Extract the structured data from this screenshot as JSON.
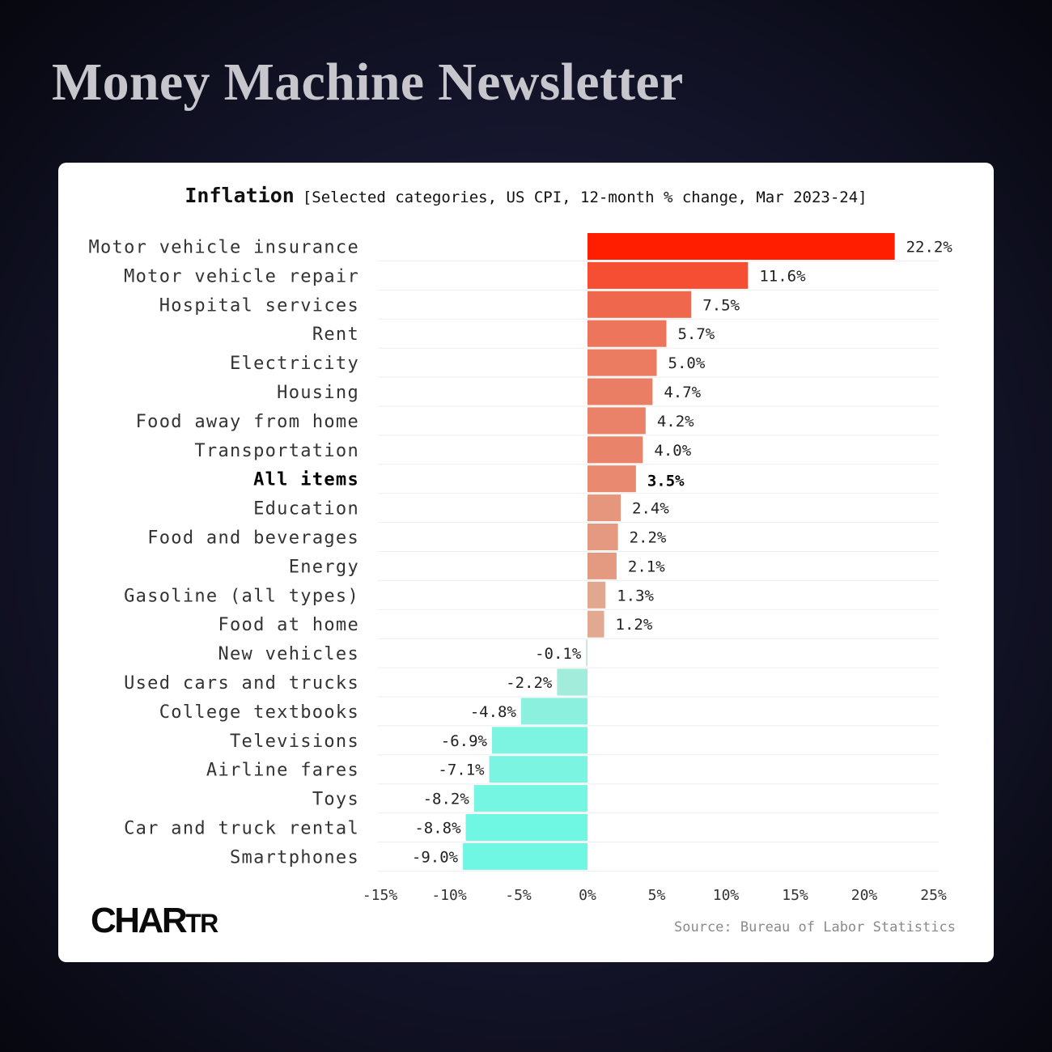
{
  "brand": {
    "title": "Money Machine Newsletter"
  },
  "chart_data": {
    "type": "bar",
    "orientation": "horizontal",
    "title": "Inflation",
    "subtitle": "[Selected categories, US CPI, 12-month % change, Mar 2023-24]",
    "categories": [
      "Motor vehicle insurance",
      "Motor vehicle repair",
      "Hospital services",
      "Rent",
      "Electricity",
      "Housing",
      "Food away from home",
      "Transportation",
      "All items",
      "Education",
      "Food and beverages",
      "Energy",
      "Gasoline (all types)",
      "Food at home",
      "New vehicles",
      "Used cars and trucks",
      "College textbooks",
      "Televisions",
      "Airline fares",
      "Toys",
      "Car and truck rental",
      "Smartphones"
    ],
    "values": [
      22.2,
      11.6,
      7.5,
      5.7,
      5.0,
      4.7,
      4.2,
      4.0,
      3.5,
      2.4,
      2.2,
      2.1,
      1.3,
      1.2,
      -0.1,
      -2.2,
      -4.8,
      -6.9,
      -7.1,
      -8.2,
      -8.8,
      -9.0
    ],
    "value_labels": [
      "22.2%",
      "11.6%",
      "7.5%",
      "5.7%",
      "5.0%",
      "4.7%",
      "4.2%",
      "4.0%",
      "3.5%",
      "2.4%",
      "2.2%",
      "2.1%",
      "1.3%",
      "1.2%",
      "-0.1%",
      "-2.2%",
      "-4.8%",
      "-6.9%",
      "-7.1%",
      "-8.2%",
      "-8.8%",
      "-9.0%"
    ],
    "highlight": "All items",
    "xlim": [
      -15,
      25
    ],
    "xticks": [
      -15,
      -10,
      -5,
      0,
      5,
      10,
      15,
      20,
      25
    ],
    "xtick_labels": [
      "-15%",
      "-10%",
      "-5%",
      "0%",
      "5%",
      "10%",
      "15%",
      "20%",
      "25%"
    ],
    "colors": {
      "positive_strong": "#ff1e00",
      "positive_weak": "#d6dcc6",
      "negative_weak": "#c7e4d2",
      "negative_strong": "#6ff7e4",
      "gridline": "#eeeeee"
    },
    "grid": true,
    "source": "Source: Bureau of Labor Statistics"
  },
  "footer": {
    "logo_main": "CHAR",
    "logo_small": "TR"
  }
}
